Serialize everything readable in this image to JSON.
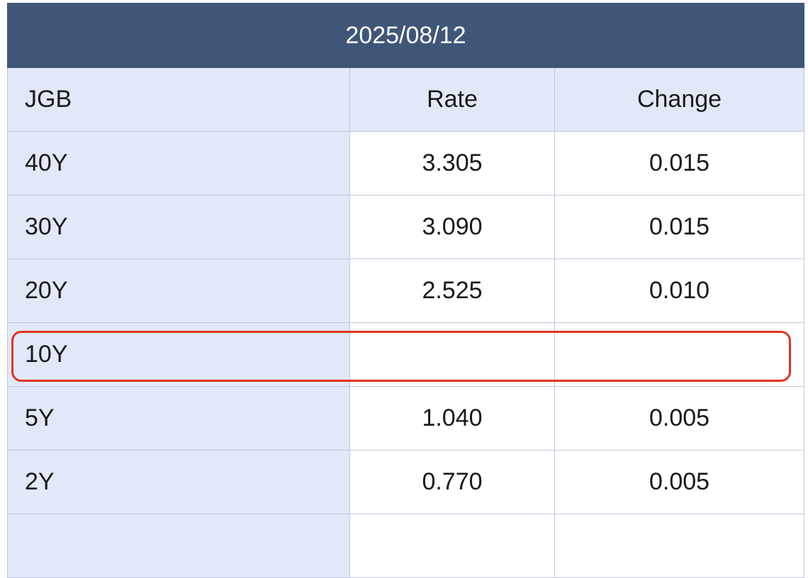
{
  "table": {
    "date": "2025/08/12",
    "headers": {
      "instrument": "JGB",
      "rate": "Rate",
      "change": "Change"
    },
    "rows": [
      {
        "tenor": "40Y",
        "rate": "3.305",
        "change": "0.015"
      },
      {
        "tenor": "30Y",
        "rate": "3.090",
        "change": "0.015"
      },
      {
        "tenor": "20Y",
        "rate": "2.525",
        "change": "0.010"
      },
      {
        "tenor": "10Y",
        "rate": "",
        "change": ""
      },
      {
        "tenor": "5Y",
        "rate": "1.040",
        "change": "0.005"
      },
      {
        "tenor": "2Y",
        "rate": "0.770",
        "change": "0.005"
      }
    ]
  },
  "colors": {
    "header_bg": "#3f5677",
    "label_bg": "#e1e8f8",
    "grid_line": "#c3c6dc",
    "highlight": "#e0341f"
  }
}
